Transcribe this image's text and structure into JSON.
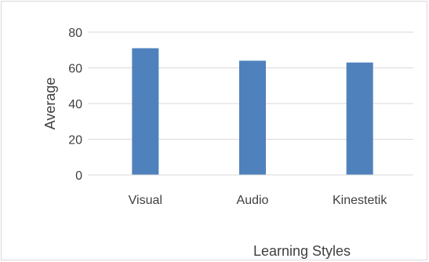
{
  "chart_data": {
    "type": "bar",
    "categories": [
      "Visual",
      "Audio",
      "Kinestetik"
    ],
    "values": [
      71,
      64,
      63
    ],
    "xlabel": "Learning Styles",
    "ylabel": "Average",
    "ylim": [
      0,
      80
    ],
    "yticks": [
      0,
      20,
      40,
      60,
      80
    ],
    "grid": true,
    "legend": "none",
    "bar_color": "#4f81bd",
    "grid_color": "#d9d9d9",
    "text_color": "#404040"
  }
}
